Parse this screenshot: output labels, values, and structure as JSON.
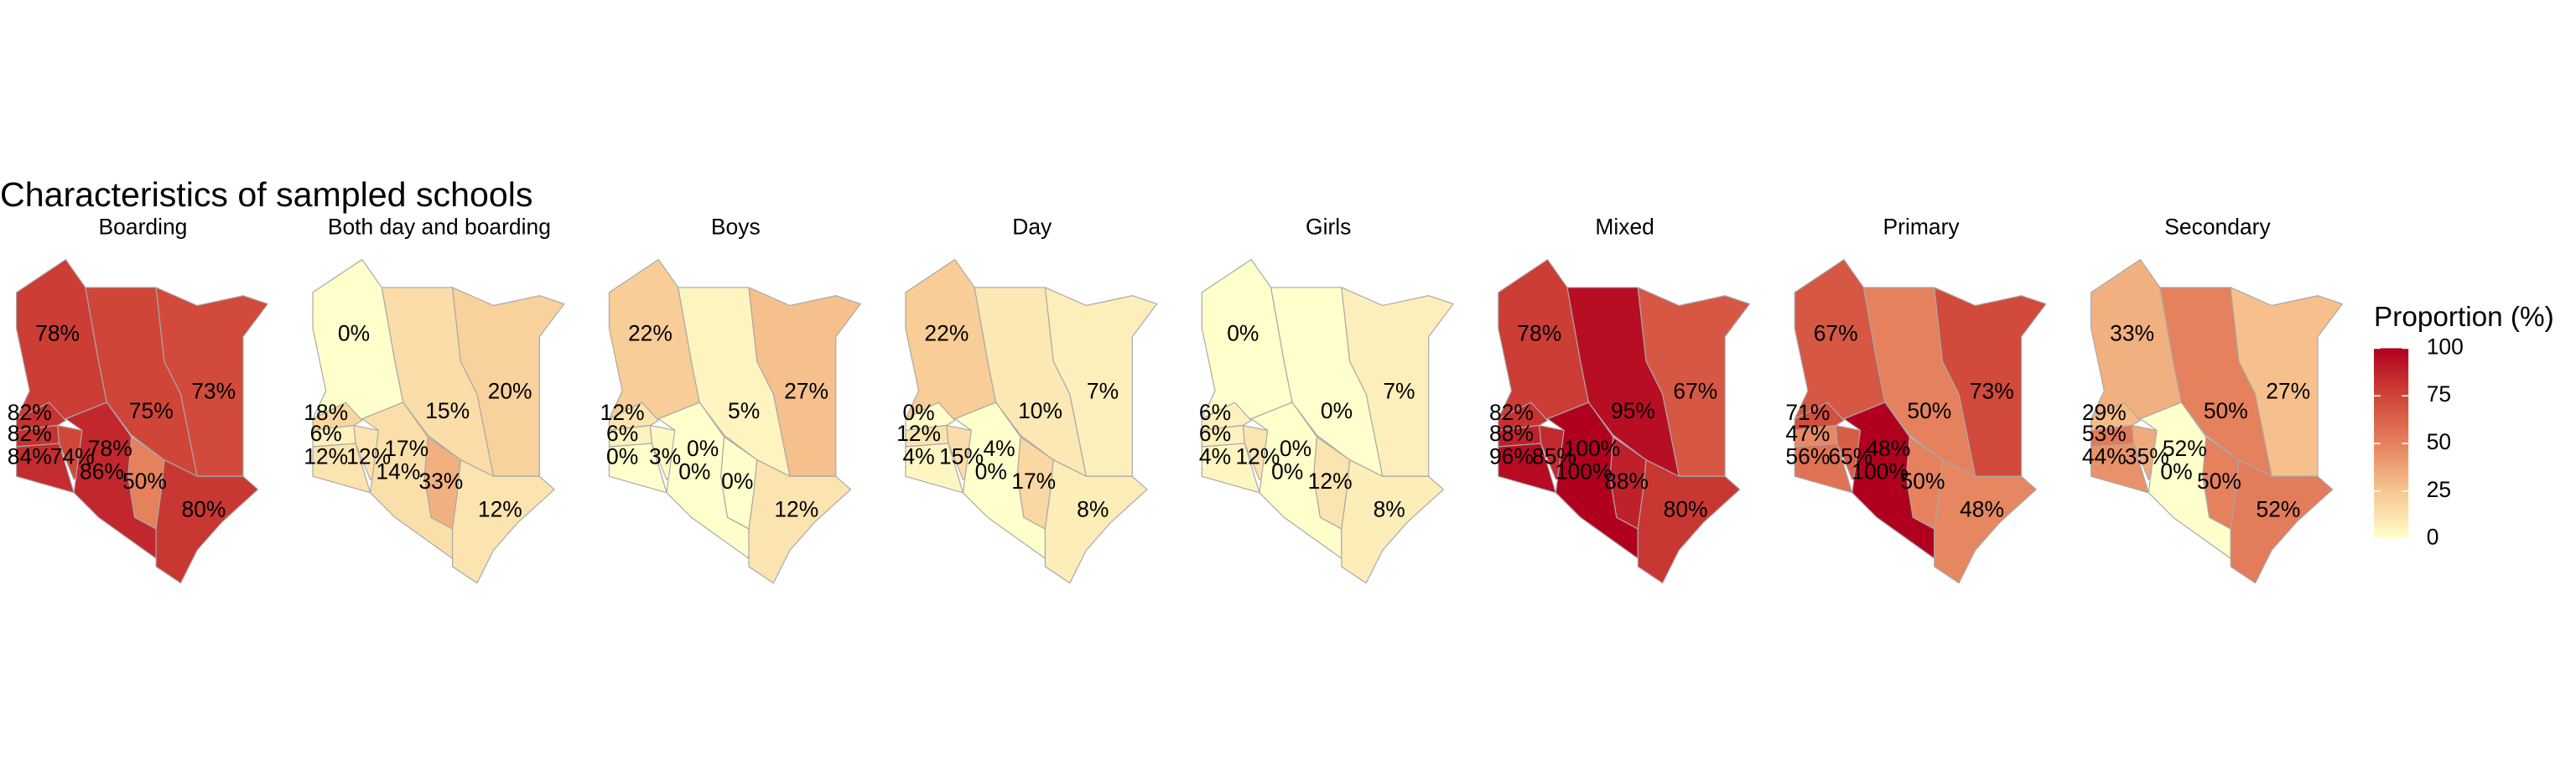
{
  "chart_data": {
    "type": "choropleth",
    "title": "Characteristics of sampled schools",
    "legend_title": "Proportion (%)",
    "limits": [
      0,
      100
    ],
    "ticks": [
      0,
      25,
      50,
      75,
      100
    ],
    "colorscale": [
      "#ffffcc",
      "#f7c690",
      "#e5815d",
      "#cf4538",
      "#b1001f"
    ],
    "panels": [
      {
        "name": "Boarding",
        "values": [
          78,
          82,
          82,
          84,
          74,
          78,
          75,
          73,
          86,
          50,
          80
        ],
        "value_labels": [
          "78%",
          "82%",
          "82%",
          "84%",
          "74%",
          "78%",
          "75%",
          "73%",
          "86%",
          "50%",
          "80%"
        ]
      },
      {
        "name": "Both day and boarding",
        "values": [
          0,
          18,
          6,
          12,
          12,
          17,
          15,
          20,
          14,
          33,
          12
        ],
        "value_labels": [
          "0%",
          "18%",
          "6%",
          "12%",
          "12%",
          "17%",
          "15%",
          "20%",
          "14%",
          "33%",
          "12%"
        ]
      },
      {
        "name": "Boys",
        "values": [
          22,
          12,
          6,
          0,
          3,
          0,
          5,
          27,
          0,
          0,
          12
        ],
        "value_labels": [
          "22%",
          "12%",
          "6%",
          "0%",
          "3%",
          "0%",
          "5%",
          "27%",
          "0%",
          "0%",
          "12%"
        ]
      },
      {
        "name": "Day",
        "values": [
          22,
          0,
          12,
          4,
          15,
          4,
          10,
          7,
          0,
          17,
          8
        ],
        "value_labels": [
          "22%",
          "0%",
          "12%",
          "4%",
          "15%",
          "4%",
          "10%",
          "7%",
          "0%",
          "17%",
          "8%"
        ]
      },
      {
        "name": "Girls",
        "values": [
          0,
          6,
          6,
          4,
          12,
          0,
          0,
          7,
          0,
          12,
          8
        ],
        "value_labels": [
          "0%",
          "6%",
          "6%",
          "4%",
          "12%",
          "0%",
          "0%",
          "7%",
          "0%",
          "12%",
          "8%"
        ]
      },
      {
        "name": "Mixed",
        "values": [
          78,
          82,
          88,
          96,
          85,
          100,
          95,
          67,
          100,
          88,
          80
        ],
        "value_labels": [
          "78%",
          "82%",
          "88%",
          "96%",
          "85%",
          "100%",
          "95%",
          "67%",
          "100%",
          "88%",
          "80%"
        ]
      },
      {
        "name": "Primary",
        "values": [
          67,
          71,
          47,
          56,
          65,
          48,
          50,
          73,
          100,
          50,
          48
        ],
        "value_labels": [
          "67%",
          "71%",
          "47%",
          "56%",
          "65%",
          "48%",
          "50%",
          "73%",
          "100%",
          "50%",
          "48%"
        ]
      },
      {
        "name": "Secondary",
        "values": [
          33,
          29,
          53,
          44,
          35,
          52,
          50,
          27,
          0,
          50,
          52
        ],
        "value_labels": [
          "33%",
          "29%",
          "53%",
          "44%",
          "35%",
          "52%",
          "50%",
          "27%",
          "0%",
          "50%",
          "52%"
        ]
      }
    ]
  }
}
